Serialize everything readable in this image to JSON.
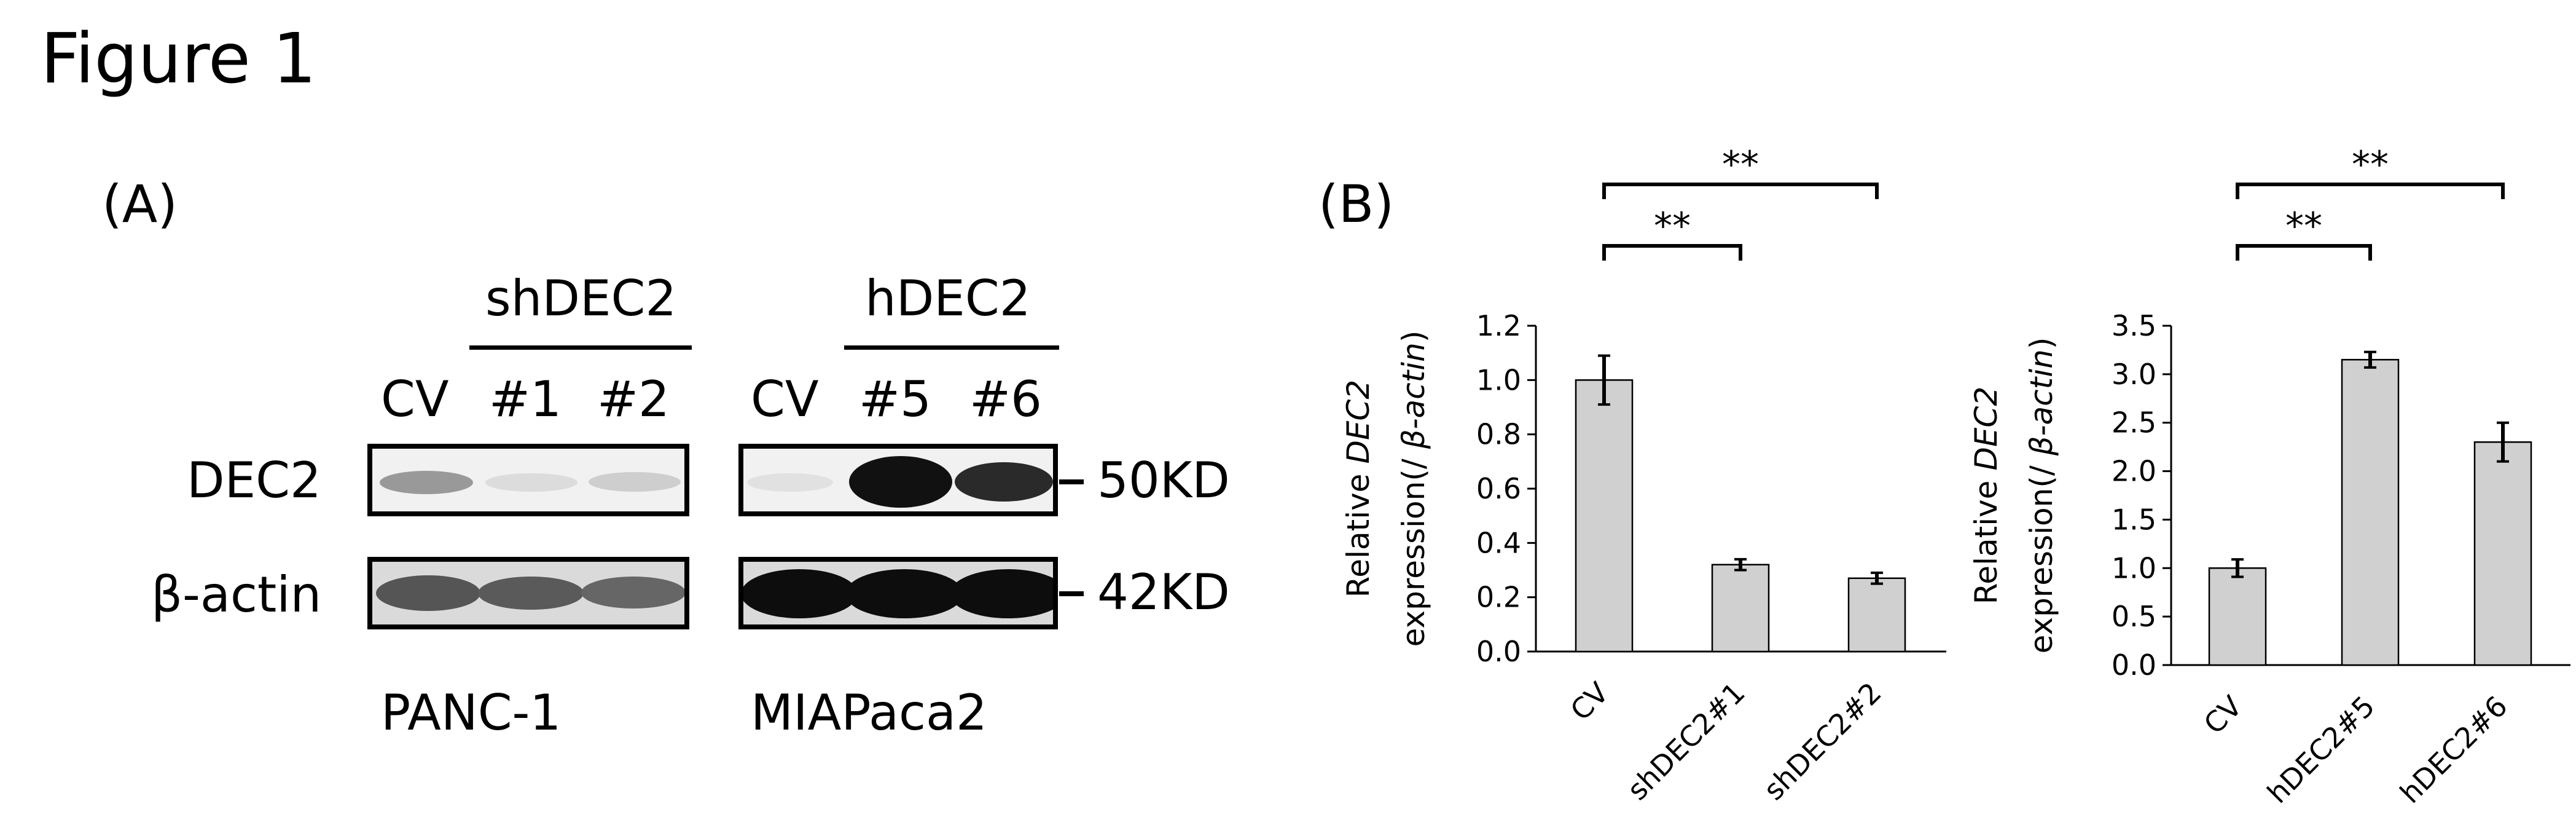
{
  "figure": {
    "title": "Figure 1"
  },
  "panel_a": {
    "label": "(A)",
    "groups": {
      "left_treatment": "shDEC2",
      "right_treatment": "hDEC2"
    },
    "lanes_left": [
      "CV",
      "#1",
      "#2"
    ],
    "lanes_right": [
      "CV",
      "#5",
      "#6"
    ],
    "rows": [
      "DEC2",
      "β-actin"
    ],
    "markers": [
      "50KD",
      "42KD"
    ],
    "cell_lines": [
      "PANC-1",
      "MIAPaca2"
    ],
    "band_intensity": {
      "DEC2_PANC-1": [
        0.55,
        0.06,
        0.12
      ],
      "DEC2_MIAPaca2": [
        0.04,
        1.0,
        0.85
      ],
      "beta-actin_PANC-1": [
        0.7,
        0.7,
        0.65
      ],
      "beta-actin_MIAPaca2": [
        1.0,
        1.0,
        1.0
      ]
    }
  },
  "panel_b": {
    "label": "(B)"
  },
  "chart_data": [
    {
      "type": "bar",
      "categories": [
        "CV",
        "shDEC2#1",
        "shDEC2#2"
      ],
      "values": [
        1.0,
        0.32,
        0.27
      ],
      "errors": [
        0.09,
        0.02,
        0.02
      ],
      "ylabel_plain": "Relative ",
      "ylabel_italic": "DEC2",
      "ylabel_line2_plain": "expression(/ ",
      "ylabel_line2_italic": "β-actin",
      "ylabel_line2_close": ")",
      "ylim": [
        0,
        1.2
      ],
      "yticks": [
        "0.0",
        "0.2",
        "0.4",
        "0.6",
        "0.8",
        "1.0",
        "1.2"
      ],
      "significance": [
        {
          "from": 0,
          "to": 1,
          "label": "**"
        },
        {
          "from": 0,
          "to": 2,
          "label": "**"
        }
      ],
      "bar_color": "#d0d0d0",
      "grid": false
    },
    {
      "type": "bar",
      "categories": [
        "CV",
        "hDEC2#5",
        "hDEC2#6"
      ],
      "values": [
        1.0,
        3.15,
        2.3
      ],
      "errors": [
        0.09,
        0.08,
        0.2
      ],
      "ylabel_plain": "Relative ",
      "ylabel_italic": "DEC2",
      "ylabel_line2_plain": "expression(/ ",
      "ylabel_line2_italic": "β-actin",
      "ylabel_line2_close": ")",
      "ylim": [
        0,
        3.5
      ],
      "yticks": [
        "0.0",
        "0.5",
        "1.0",
        "1.5",
        "2.0",
        "2.5",
        "3.0",
        "3.5"
      ],
      "significance": [
        {
          "from": 0,
          "to": 1,
          "label": "**"
        },
        {
          "from": 0,
          "to": 2,
          "label": "**"
        }
      ],
      "bar_color": "#d0d0d0",
      "grid": false
    }
  ]
}
